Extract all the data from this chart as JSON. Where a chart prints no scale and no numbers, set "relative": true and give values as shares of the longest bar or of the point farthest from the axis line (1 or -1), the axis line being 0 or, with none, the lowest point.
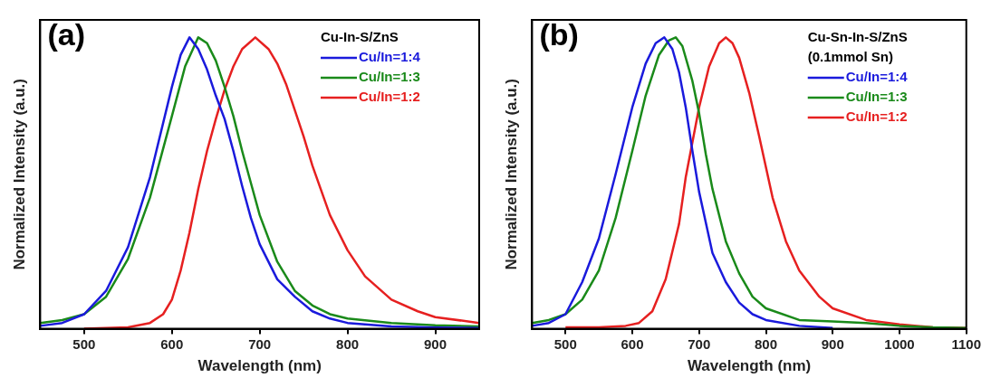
{
  "chart_data": [
    {
      "type": "line",
      "annotations": [
        "(a)"
      ],
      "xlabel": "Wavelength (nm)",
      "ylabel": "Normalized Intensity (a.u.)",
      "relative": true,
      "xlim": [
        450,
        950
      ],
      "xticks": [
        500,
        600,
        700,
        800,
        900
      ],
      "legend": "top right",
      "legend_title": "Cu-In-S/ZnS",
      "series": [
        {
          "name": "Cu/In=1:4",
          "color": "#1a1adc",
          "x": [
            450,
            475,
            500,
            525,
            550,
            575,
            600,
            610,
            620,
            630,
            640,
            650,
            660,
            670,
            680,
            690,
            700,
            720,
            740,
            760,
            780,
            800,
            850,
            900,
            950
          ],
          "values": [
            0.01,
            0.02,
            0.05,
            0.13,
            0.28,
            0.52,
            0.83,
            0.94,
            1,
            0.96,
            0.89,
            0.8,
            0.72,
            0.61,
            0.49,
            0.38,
            0.29,
            0.17,
            0.11,
            0.06,
            0.035,
            0.02,
            0.008,
            0.004,
            0.003
          ]
        },
        {
          "name": "Cu/In=1:3",
          "color": "#1a8a1a",
          "x": [
            450,
            475,
            500,
            525,
            550,
            575,
            600,
            615,
            630,
            640,
            650,
            660,
            670,
            680,
            690,
            700,
            720,
            740,
            760,
            780,
            800,
            850,
            900,
            950
          ],
          "values": [
            0.02,
            0.03,
            0.05,
            0.11,
            0.24,
            0.45,
            0.73,
            0.9,
            1,
            0.98,
            0.92,
            0.83,
            0.73,
            0.61,
            0.5,
            0.39,
            0.23,
            0.13,
            0.08,
            0.05,
            0.035,
            0.02,
            0.012,
            0.008
          ]
        },
        {
          "name": "Cu/In=1:2",
          "color": "#e62020",
          "x": [
            500,
            550,
            575,
            590,
            600,
            610,
            620,
            630,
            640,
            650,
            660,
            670,
            680,
            695,
            710,
            720,
            730,
            740,
            750,
            760,
            780,
            800,
            820,
            850,
            880,
            900,
            950
          ],
          "values": [
            0,
            0.005,
            0.02,
            0.05,
            0.1,
            0.2,
            0.33,
            0.48,
            0.61,
            0.72,
            0.82,
            0.9,
            0.96,
            1,
            0.96,
            0.91,
            0.84,
            0.75,
            0.66,
            0.56,
            0.39,
            0.27,
            0.18,
            0.1,
            0.06,
            0.04,
            0.02
          ]
        }
      ]
    },
    {
      "type": "line",
      "annotations": [
        "(b)"
      ],
      "xlabel": "Wavelength (nm)",
      "ylabel": "Normalized Intensity (a.u.)",
      "relative": true,
      "xlim": [
        450,
        1100
      ],
      "xticks": [
        500,
        600,
        700,
        800,
        900,
        1000,
        1100
      ],
      "legend": "top right",
      "legend_title": "Cu-Sn-In-S/ZnS\n(0.1mmol Sn)",
      "series": [
        {
          "name": "Cu/In=1:4",
          "color": "#1a1adc",
          "x": [
            450,
            475,
            500,
            525,
            550,
            575,
            600,
            620,
            635,
            648,
            660,
            670,
            680,
            690,
            700,
            720,
            740,
            760,
            780,
            800,
            850,
            900
          ],
          "values": [
            0.01,
            0.02,
            0.05,
            0.16,
            0.31,
            0.53,
            0.76,
            0.91,
            0.98,
            1,
            0.96,
            0.88,
            0.76,
            0.61,
            0.47,
            0.26,
            0.16,
            0.09,
            0.05,
            0.03,
            0.01,
            0.003
          ]
        },
        {
          "name": "Cu/In=1:3",
          "color": "#1a8a1a",
          "x": [
            450,
            475,
            500,
            525,
            550,
            575,
            600,
            620,
            640,
            655,
            665,
            675,
            690,
            700,
            710,
            720,
            740,
            760,
            780,
            800,
            850,
            900,
            950,
            1000,
            1050,
            1100
          ],
          "values": [
            0.02,
            0.03,
            0.05,
            0.1,
            0.2,
            0.38,
            0.61,
            0.8,
            0.94,
            0.99,
            1,
            0.97,
            0.85,
            0.74,
            0.6,
            0.48,
            0.3,
            0.19,
            0.11,
            0.07,
            0.03,
            0.025,
            0.02,
            0.01,
            0.005,
            0.003
          ]
        },
        {
          "name": "Cu/In=1:2",
          "color": "#e62020",
          "x": [
            500,
            550,
            590,
            610,
            630,
            650,
            670,
            680,
            690,
            700,
            715,
            730,
            740,
            750,
            760,
            775,
            790,
            810,
            830,
            850,
            880,
            900,
            950,
            1000,
            1050,
            1100
          ],
          "values": [
            0.005,
            0.005,
            0.01,
            0.02,
            0.06,
            0.17,
            0.36,
            0.52,
            0.64,
            0.76,
            0.9,
            0.98,
            1,
            0.98,
            0.93,
            0.81,
            0.66,
            0.45,
            0.3,
            0.2,
            0.11,
            0.07,
            0.03,
            0.015,
            0.005,
            0.003
          ]
        }
      ]
    }
  ]
}
